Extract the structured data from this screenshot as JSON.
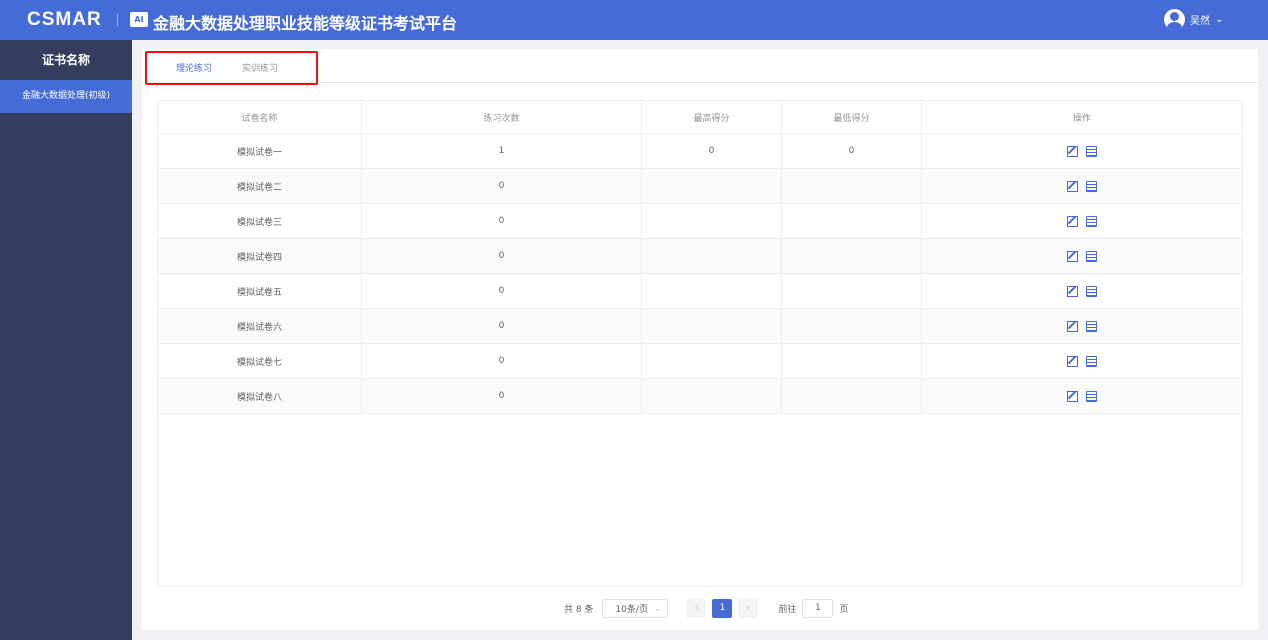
{
  "header": {
    "logo": "CSMAR",
    "title": "金融大数据处理职业技能等级证书考试平台",
    "username": "吴然"
  },
  "sidebar": {
    "title": "证书名称",
    "items": [
      {
        "label": "金融大数据处理(初级)"
      }
    ]
  },
  "tabs": [
    {
      "label": "理论练习",
      "active": true
    },
    {
      "label": "实训练习",
      "active": false
    }
  ],
  "table": {
    "columns": [
      "试卷名称",
      "练习次数",
      "最高得分",
      "最低得分",
      "操作"
    ],
    "rows": [
      [
        "模拟试卷一",
        "1",
        "0",
        "0"
      ],
      [
        "模拟试卷二",
        "0",
        "",
        ""
      ],
      [
        "模拟试卷三",
        "0",
        "",
        ""
      ],
      [
        "模拟试卷四",
        "0",
        "",
        ""
      ],
      [
        "模拟试卷五",
        "0",
        "",
        ""
      ],
      [
        "模拟试卷六",
        "0",
        "",
        ""
      ],
      [
        "模拟试卷七",
        "0",
        "",
        ""
      ],
      [
        "模拟试卷八",
        "0",
        "",
        ""
      ]
    ]
  },
  "pagination": {
    "total": "共 8 条",
    "page_size": "10条/页",
    "current": "1",
    "goto_label": "前往",
    "goto_value": "1",
    "page_suffix": "页",
    "prev": "‹",
    "next": "›"
  },
  "colors": {
    "accent": "#456bd6",
    "sidebar": "#343d5e",
    "highlight": "#f01010"
  }
}
